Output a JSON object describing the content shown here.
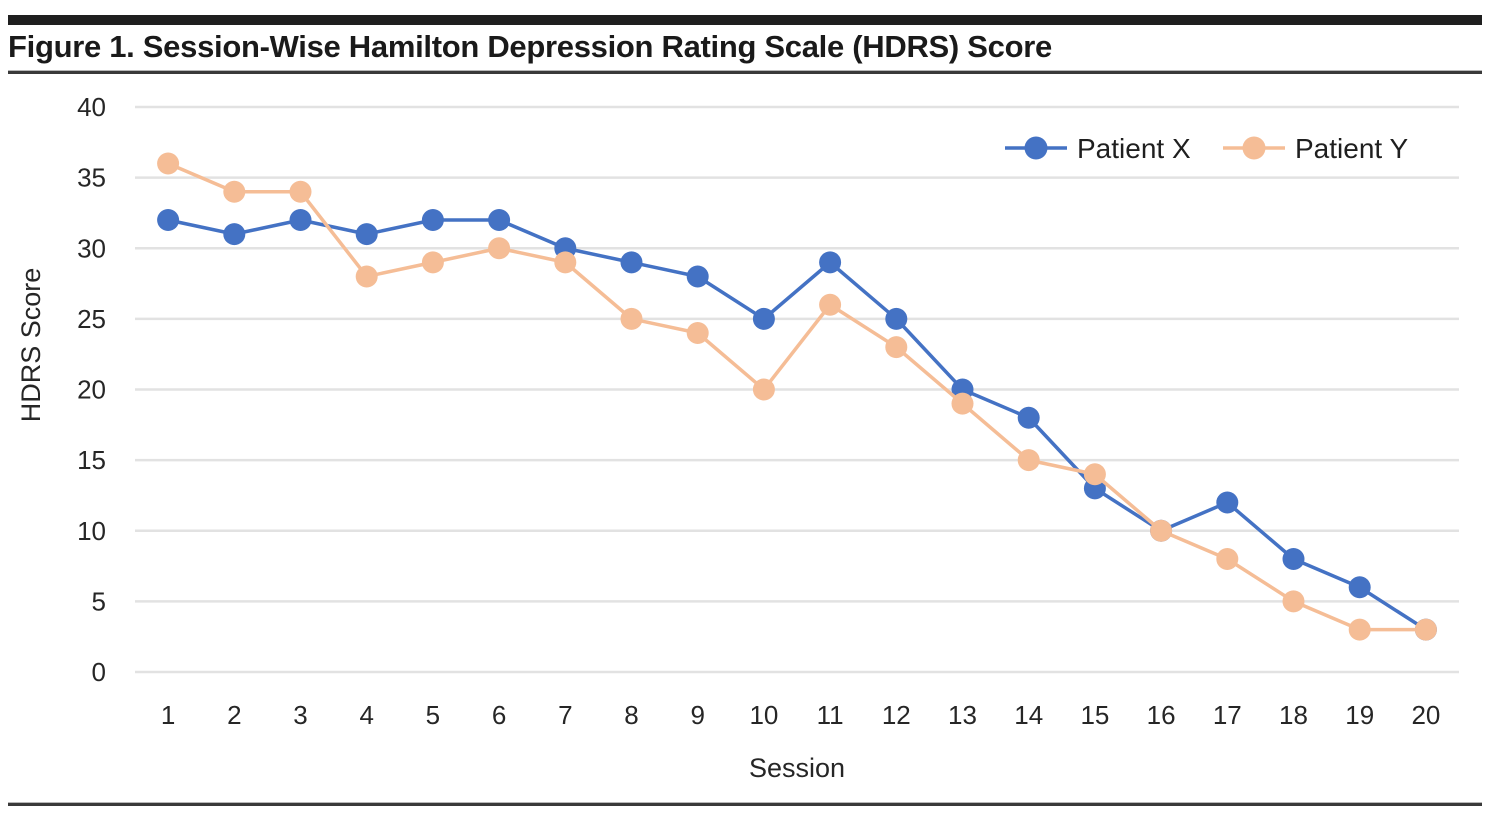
{
  "figure": {
    "title": "Figure 1. Session-Wise Hamilton Depression Rating Scale (HDRS) Score"
  },
  "chart_data": {
    "type": "line",
    "title": "Figure 1. Session-Wise Hamilton Depression Rating Scale (HDRS) Score",
    "x": [
      1,
      2,
      3,
      4,
      5,
      6,
      7,
      8,
      9,
      10,
      11,
      12,
      13,
      14,
      15,
      16,
      17,
      18,
      19,
      20
    ],
    "series": [
      {
        "name": "Patient X",
        "color": "#4472C4",
        "values": [
          32,
          31,
          32,
          31,
          32,
          32,
          30,
          29,
          28,
          25,
          29,
          25,
          20,
          18,
          13,
          10,
          12,
          8,
          6,
          3
        ]
      },
      {
        "name": "Patient Y",
        "color": "#F5BD96",
        "values": [
          36,
          34,
          34,
          28,
          29,
          30,
          29,
          25,
          24,
          20,
          26,
          23,
          19,
          15,
          14,
          10,
          8,
          5,
          3,
          3
        ]
      }
    ],
    "xlabel": "Session",
    "ylabel": "HDRS Score",
    "ylim": [
      0,
      40
    ],
    "yticks": [
      0,
      5,
      10,
      15,
      20,
      25,
      30,
      35,
      40
    ],
    "grid": "horizontal-only",
    "gridline_color": "#E2E2E2",
    "text_color": "#262626",
    "legend_position": "top-right",
    "marker": "circle"
  }
}
